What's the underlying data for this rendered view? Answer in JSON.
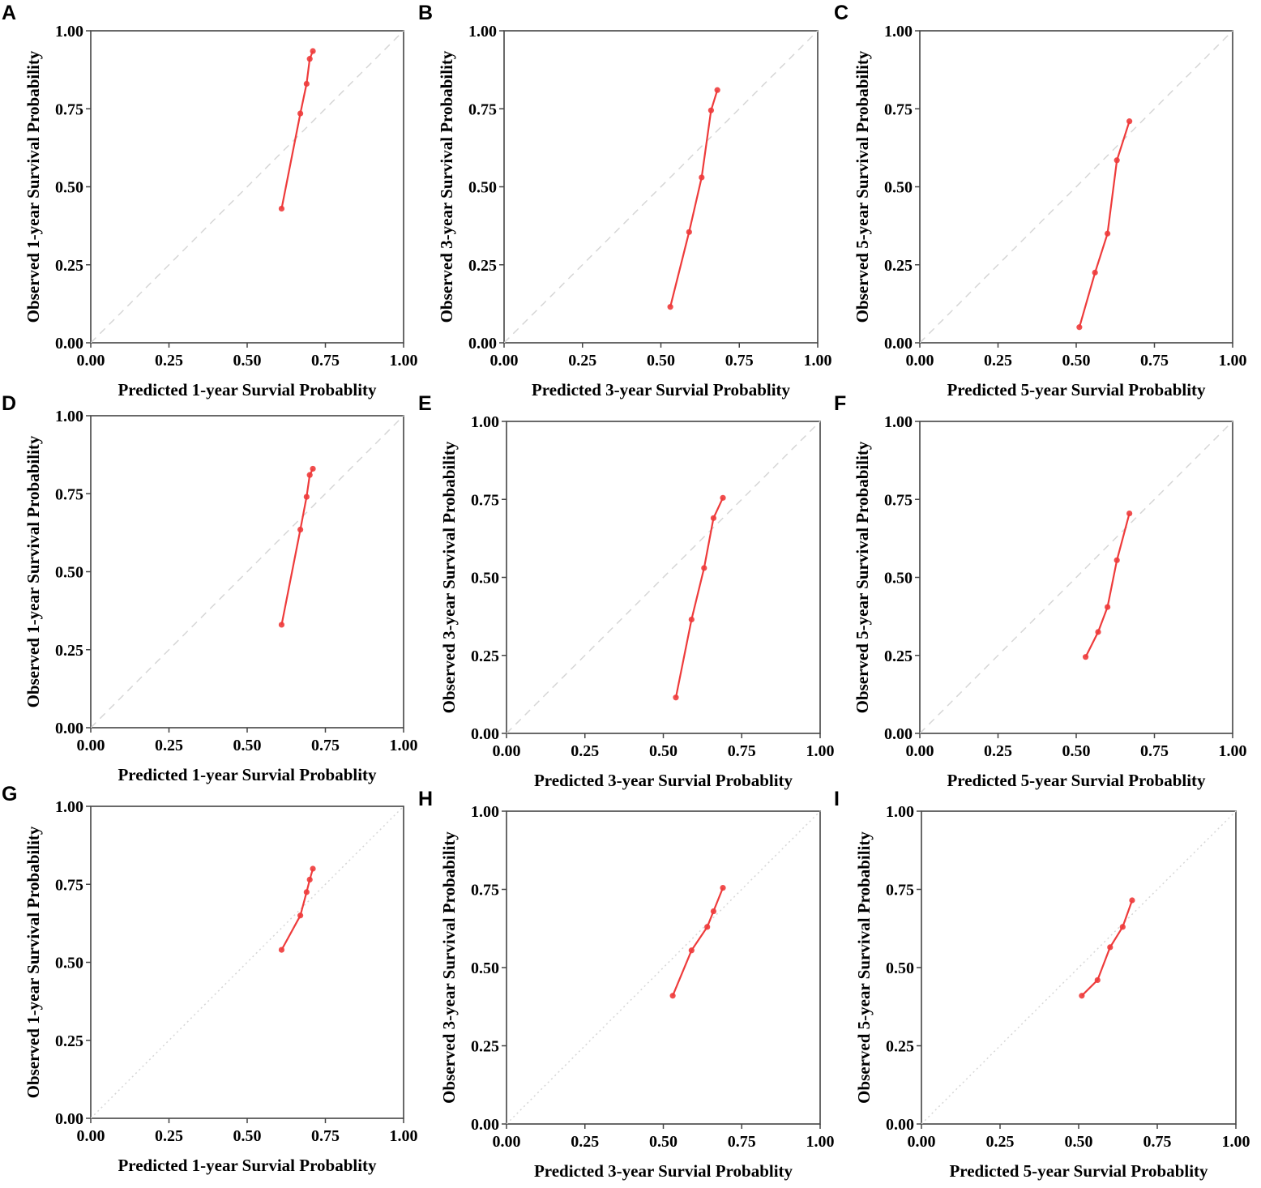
{
  "colors": {
    "curve": "#ee3b3b",
    "point": "#ee3b3b",
    "reference": "#d6d6d6",
    "axis": "#444444"
  },
  "chart_data": [
    {
      "panel": "A",
      "type": "line",
      "xlabel": "Predicted 1-year Survial Probablity",
      "ylabel": "Observed 1-year Survival Probability",
      "xlim": [
        0,
        1
      ],
      "ylim": [
        0,
        1
      ],
      "ticks": [
        "0.00",
        "0.25",
        "0.50",
        "0.75",
        "1.00"
      ],
      "reference_line": "dashed",
      "x": [
        0.61,
        0.67,
        0.69,
        0.7,
        0.71
      ],
      "y": [
        0.43,
        0.735,
        0.83,
        0.91,
        0.935
      ]
    },
    {
      "panel": "B",
      "type": "line",
      "xlabel": "Predicted 3-year Survial Probablity",
      "ylabel": "Observed 3-year Survival Probability",
      "xlim": [
        0,
        1
      ],
      "ylim": [
        0,
        1
      ],
      "ticks": [
        "0.00",
        "0.25",
        "0.50",
        "0.75",
        "1.00"
      ],
      "reference_line": "dashed",
      "x": [
        0.53,
        0.59,
        0.63,
        0.66,
        0.68
      ],
      "y": [
        0.115,
        0.355,
        0.53,
        0.745,
        0.81
      ]
    },
    {
      "panel": "C",
      "type": "line",
      "xlabel": "Predicted 5-year Survial Probablity",
      "ylabel": "Observed 5-year Survival Probability",
      "xlim": [
        0,
        1
      ],
      "ylim": [
        0,
        1
      ],
      "ticks": [
        "0.00",
        "0.25",
        "0.50",
        "0.75",
        "1.00"
      ],
      "reference_line": "dashed",
      "x": [
        0.51,
        0.56,
        0.6,
        0.63,
        0.67
      ],
      "y": [
        0.05,
        0.225,
        0.35,
        0.585,
        0.71
      ]
    },
    {
      "panel": "D",
      "type": "line",
      "xlabel": "Predicted 1-year Survial Probablity",
      "ylabel": "Observed 1-year Survival Probability",
      "xlim": [
        0,
        1
      ],
      "ylim": [
        0,
        1
      ],
      "ticks": [
        "0.00",
        "0.25",
        "0.50",
        "0.75",
        "1.00"
      ],
      "reference_line": "dashed",
      "x": [
        0.61,
        0.67,
        0.69,
        0.7,
        0.71
      ],
      "y": [
        0.33,
        0.635,
        0.74,
        0.81,
        0.83
      ]
    },
    {
      "panel": "E",
      "type": "line",
      "xlabel": "Predicted 3-year Survial Probablity",
      "ylabel": "Observed 3-year Survival Probability",
      "xlim": [
        0,
        1
      ],
      "ylim": [
        0,
        1
      ],
      "ticks": [
        "0.00",
        "0.25",
        "0.50",
        "0.75",
        "1.00"
      ],
      "reference_line": "dashed",
      "x": [
        0.54,
        0.59,
        0.63,
        0.66,
        0.69
      ],
      "y": [
        0.115,
        0.365,
        0.53,
        0.69,
        0.755
      ]
    },
    {
      "panel": "F",
      "type": "line",
      "xlabel": "Predicted 5-year Survial Probablity",
      "ylabel": "Observed 5-year Survival Probability",
      "xlim": [
        0,
        1
      ],
      "ylim": [
        0,
        1
      ],
      "ticks": [
        "0.00",
        "0.25",
        "0.50",
        "0.75",
        "1.00"
      ],
      "reference_line": "dashed",
      "x": [
        0.53,
        0.57,
        0.6,
        0.63,
        0.67
      ],
      "y": [
        0.245,
        0.325,
        0.405,
        0.555,
        0.705
      ]
    },
    {
      "panel": "G",
      "type": "line",
      "xlabel": "Predicted 1-year Survial Probablity",
      "ylabel": "Observed 1-year Survival Probability",
      "xlim": [
        0,
        1
      ],
      "ylim": [
        0,
        1
      ],
      "ticks": [
        "0.00",
        "0.25",
        "0.50",
        "0.75",
        "1.00"
      ],
      "reference_line": "dotted",
      "x": [
        0.61,
        0.67,
        0.69,
        0.7,
        0.71
      ],
      "y": [
        0.54,
        0.65,
        0.725,
        0.765,
        0.8
      ]
    },
    {
      "panel": "H",
      "type": "line",
      "xlabel": "Predicted 3-year Survial Probablity",
      "ylabel": "Observed 3-year Survival Probability",
      "xlim": [
        0,
        1
      ],
      "ylim": [
        0,
        1
      ],
      "ticks": [
        "0.00",
        "0.25",
        "0.50",
        "0.75",
        "1.00"
      ],
      "reference_line": "dotted",
      "x": [
        0.53,
        0.59,
        0.64,
        0.66,
        0.69
      ],
      "y": [
        0.41,
        0.555,
        0.63,
        0.68,
        0.755
      ]
    },
    {
      "panel": "I",
      "type": "line",
      "xlabel": "Predicted 5-year Survial Probablity",
      "ylabel": "Observed 5-year Survival Probability",
      "xlim": [
        0,
        1
      ],
      "ylim": [
        0,
        1
      ],
      "ticks": [
        "0.00",
        "0.25",
        "0.50",
        "0.75",
        "1.00"
      ],
      "reference_line": "dotted",
      "x": [
        0.51,
        0.56,
        0.6,
        0.64,
        0.67
      ],
      "y": [
        0.41,
        0.46,
        0.565,
        0.63,
        0.715
      ]
    }
  ]
}
